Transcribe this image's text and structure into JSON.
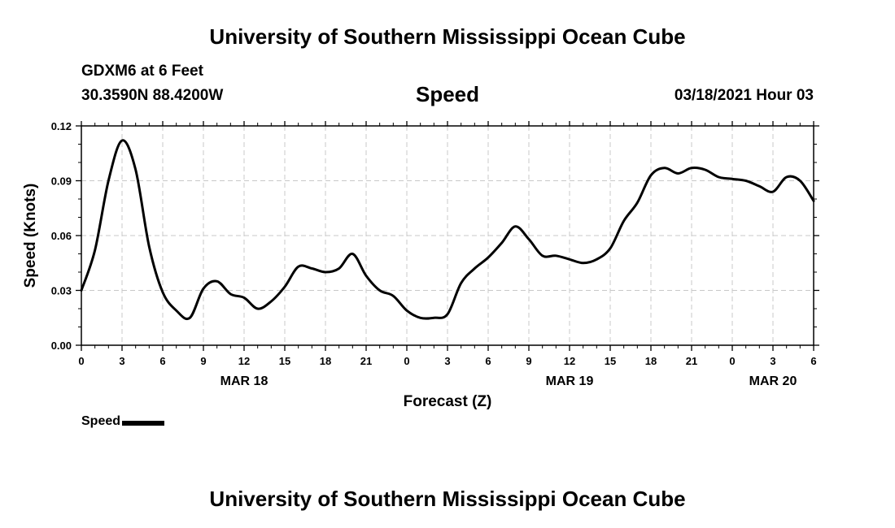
{
  "header": {
    "title": "University of Southern Mississippi Ocean Cube",
    "station": "GDXM6 at 6 Feet",
    "coordinates": "30.3590N 88.4200W",
    "variable": "Speed",
    "datetime": "03/18/2021 Hour 03"
  },
  "footer": {
    "title": "University of Southern Mississippi Ocean Cube"
  },
  "legend": {
    "label": "Speed",
    "color": "#000000"
  },
  "chart_data": {
    "type": "line",
    "title": "Speed",
    "xlabel": "Forecast (Z)",
    "ylabel": "Speed (Knots)",
    "ylim": [
      0,
      0.12
    ],
    "yticks": [
      "0.00",
      "0.03",
      "0.06",
      "0.09",
      "0.12"
    ],
    "xlim": [
      0,
      54
    ],
    "xtick_labels": [
      "0",
      "3",
      "6",
      "9",
      "12",
      "15",
      "18",
      "21",
      "0",
      "3",
      "6",
      "9",
      "12",
      "15",
      "18",
      "21",
      "0",
      "3",
      "6"
    ],
    "date_labels": [
      {
        "label": "MAR 18",
        "hour": 12
      },
      {
        "label": "MAR 19",
        "hour": 36
      },
      {
        "label": "MAR 20",
        "hour": 51
      }
    ],
    "grid": true,
    "series": [
      {
        "name": "Speed",
        "color": "#000000",
        "x": [
          0,
          1,
          2,
          3,
          4,
          5,
          6,
          7,
          8,
          9,
          10,
          11,
          12,
          13,
          14,
          15,
          16,
          17,
          18,
          19,
          20,
          21,
          22,
          23,
          24,
          25,
          26,
          27,
          28,
          29,
          30,
          31,
          32,
          33,
          34,
          35,
          36,
          37,
          38,
          39,
          40,
          41,
          42,
          43,
          44,
          45,
          46,
          47,
          48,
          49,
          50,
          51,
          52,
          53,
          54
        ],
        "values": [
          0.03,
          0.052,
          0.09,
          0.112,
          0.096,
          0.054,
          0.029,
          0.019,
          0.015,
          0.031,
          0.035,
          0.028,
          0.026,
          0.02,
          0.024,
          0.032,
          0.043,
          0.042,
          0.04,
          0.042,
          0.05,
          0.038,
          0.03,
          0.027,
          0.019,
          0.015,
          0.015,
          0.017,
          0.034,
          0.042,
          0.048,
          0.056,
          0.065,
          0.058,
          0.049,
          0.049,
          0.047,
          0.045,
          0.047,
          0.053,
          0.068,
          0.078,
          0.093,
          0.097,
          0.094,
          0.097,
          0.096,
          0.092,
          0.091,
          0.09,
          0.087,
          0.084,
          0.092,
          0.09,
          0.079
        ]
      }
    ]
  }
}
